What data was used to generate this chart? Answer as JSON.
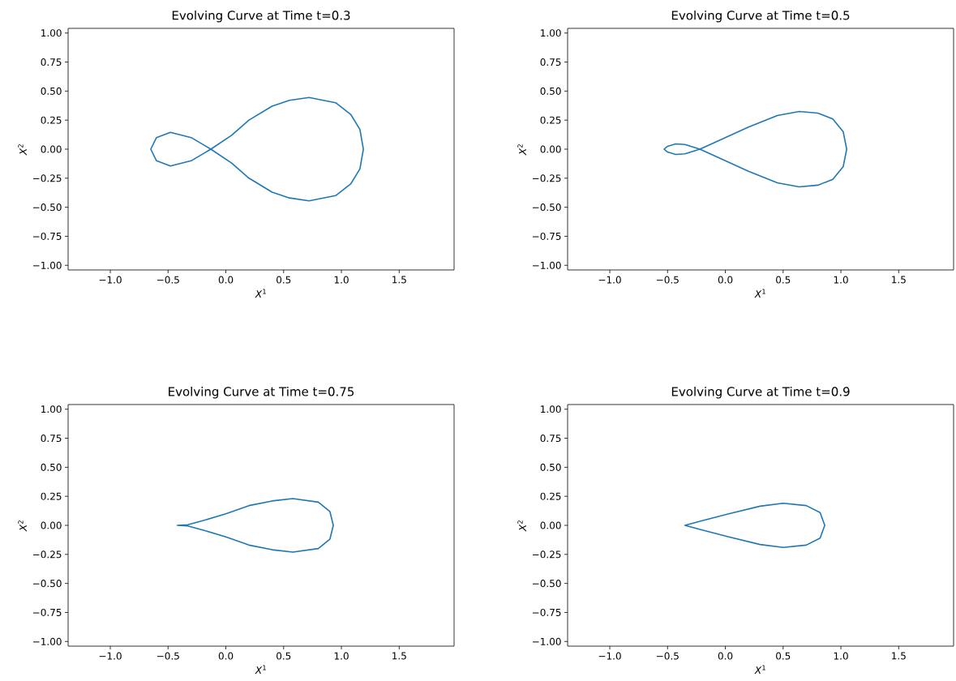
{
  "chart_data": [
    {
      "type": "line",
      "title": "Evolving Curve at Time t=0.3",
      "xlabel": "*X*$^{1}$",
      "ylabel": "*X*$^{2}$",
      "xlim": [
        -1.365,
        1.975
      ],
      "ylim": [
        -1.04,
        1.04
      ],
      "xticks": [
        {
          "value": -1,
          "label": "−1.0"
        },
        {
          "value": -0.5,
          "label": "−0.5"
        },
        {
          "value": 0,
          "label": "0.0"
        },
        {
          "value": 0.5,
          "label": "0.5"
        },
        {
          "value": 1,
          "label": "1.0"
        },
        {
          "value": 1.5,
          "label": "1.5"
        }
      ],
      "yticks": [
        {
          "value": -1,
          "label": "−1.00"
        },
        {
          "value": -0.75,
          "label": "−0.75"
        },
        {
          "value": -0.5,
          "label": "−0.50"
        },
        {
          "value": -0.25,
          "label": "−0.25"
        },
        {
          "value": 0,
          "label": "0.00"
        },
        {
          "value": 0.25,
          "label": "0.25"
        },
        {
          "value": 0.5,
          "label": "0.50"
        },
        {
          "value": 0.75,
          "label": "0.75"
        },
        {
          "value": 1,
          "label": "1.00"
        }
      ],
      "series": [
        {
          "color": "#1f77b4",
          "x": [
            1.19,
            1.16,
            1.08,
            0.95,
            0.72,
            0.55,
            0.4,
            0.2,
            0.05,
            -0.13,
            -0.3,
            -0.48,
            -0.6,
            -0.65,
            -0.6,
            -0.48,
            -0.3,
            -0.13,
            0.05,
            0.2,
            0.4,
            0.55,
            0.72,
            0.95,
            1.08,
            1.16,
            1.19,
            1.16
          ],
          "values": [
            0,
            0.17,
            0.3,
            0.4,
            0.445,
            0.42,
            0.37,
            0.25,
            0.12,
            0,
            -0.1,
            -0.145,
            -0.1,
            0,
            0.1,
            0.145,
            0.1,
            0,
            -0.12,
            -0.25,
            -0.37,
            -0.42,
            -0.445,
            -0.4,
            -0.3,
            -0.17,
            0,
            0.17
          ]
        }
      ]
    },
    {
      "type": "line",
      "title": "Evolving Curve at Time t=0.5",
      "xlabel": "*X*$^{1}$",
      "ylabel": "*X*$^{2}$",
      "xlim": [
        -1.365,
        1.975
      ],
      "ylim": [
        -1.04,
        1.04
      ],
      "xticks": [
        {
          "value": -1,
          "label": "−1.0"
        },
        {
          "value": -0.5,
          "label": "−0.5"
        },
        {
          "value": 0,
          "label": "0.0"
        },
        {
          "value": 0.5,
          "label": "0.5"
        },
        {
          "value": 1,
          "label": "1.0"
        },
        {
          "value": 1.5,
          "label": "1.5"
        }
      ],
      "yticks": [
        {
          "value": -1,
          "label": "−1.00"
        },
        {
          "value": -0.75,
          "label": "−0.75"
        },
        {
          "value": -0.5,
          "label": "−0.50"
        },
        {
          "value": -0.25,
          "label": "−0.25"
        },
        {
          "value": 0,
          "label": "0.00"
        },
        {
          "value": 0.25,
          "label": "0.25"
        },
        {
          "value": 0.5,
          "label": "0.50"
        },
        {
          "value": 0.75,
          "label": "0.75"
        },
        {
          "value": 1,
          "label": "1.00"
        }
      ],
      "series": [
        {
          "color": "#1f77b4",
          "x": [
            1.05,
            1.02,
            0.93,
            0.8,
            0.64,
            0.45,
            0.2,
            0,
            -0.22,
            -0.35,
            -0.43,
            -0.5,
            -0.53,
            -0.5,
            -0.43,
            -0.35,
            -0.22,
            0,
            0.2,
            0.45,
            0.64,
            0.8,
            0.93,
            1.02,
            1.05,
            1.02
          ],
          "values": [
            0,
            0.15,
            0.26,
            0.31,
            0.325,
            0.29,
            0.19,
            0.1,
            0,
            -0.04,
            -0.045,
            -0.025,
            0,
            0.025,
            0.045,
            0.04,
            0,
            -0.1,
            -0.19,
            -0.29,
            -0.325,
            -0.31,
            -0.26,
            -0.15,
            0,
            0.15
          ]
        }
      ]
    },
    {
      "type": "line",
      "title": "Evolving Curve at Time t=0.75",
      "xlabel": "*X*$^{1}$",
      "ylabel": "*X*$^{2}$",
      "xlim": [
        -1.365,
        1.975
      ],
      "ylim": [
        -1.04,
        1.04
      ],
      "xticks": [
        {
          "value": -1,
          "label": "−1.0"
        },
        {
          "value": -0.5,
          "label": "−0.5"
        },
        {
          "value": 0,
          "label": "0.0"
        },
        {
          "value": 0.5,
          "label": "0.5"
        },
        {
          "value": 1,
          "label": "1.0"
        },
        {
          "value": 1.5,
          "label": "1.5"
        }
      ],
      "yticks": [
        {
          "value": -1,
          "label": "−1.00"
        },
        {
          "value": -0.75,
          "label": "−0.75"
        },
        {
          "value": -0.5,
          "label": "−0.50"
        },
        {
          "value": -0.25,
          "label": "−0.25"
        },
        {
          "value": 0,
          "label": "0.00"
        },
        {
          "value": 0.25,
          "label": "0.25"
        },
        {
          "value": 0.5,
          "label": "0.50"
        },
        {
          "value": 0.75,
          "label": "0.75"
        },
        {
          "value": 1,
          "label": "1.00"
        }
      ],
      "series": [
        {
          "color": "#1f77b4",
          "x": [
            0.93,
            0.9,
            0.8,
            0.58,
            0.4,
            0.2,
            0,
            -0.2,
            -0.33,
            -0.42,
            -0.33,
            -0.2,
            0,
            0.2,
            0.4,
            0.58,
            0.8,
            0.9,
            0.93,
            0.9
          ],
          "values": [
            0,
            0.12,
            0.2,
            0.23,
            0.21,
            0.17,
            0.1,
            0.04,
            0.005,
            0,
            -0.005,
            -0.04,
            -0.1,
            -0.17,
            -0.21,
            -0.23,
            -0.2,
            -0.12,
            0,
            0.12
          ]
        }
      ]
    },
    {
      "type": "line",
      "title": "Evolving Curve at Time t=0.9",
      "xlabel": "*X*$^{1}$",
      "ylabel": "*X*$^{2}$",
      "xlim": [
        -1.365,
        1.975
      ],
      "ylim": [
        -1.04,
        1.04
      ],
      "xticks": [
        {
          "value": -1,
          "label": "−1.0"
        },
        {
          "value": -0.5,
          "label": "−0.5"
        },
        {
          "value": 0,
          "label": "0.0"
        },
        {
          "value": 0.5,
          "label": "0.5"
        },
        {
          "value": 1,
          "label": "1.0"
        },
        {
          "value": 1.5,
          "label": "1.5"
        }
      ],
      "yticks": [
        {
          "value": -1,
          "label": "−1.00"
        },
        {
          "value": -0.75,
          "label": "−0.75"
        },
        {
          "value": -0.5,
          "label": "−0.50"
        },
        {
          "value": -0.25,
          "label": "−0.25"
        },
        {
          "value": 0,
          "label": "0.00"
        },
        {
          "value": 0.25,
          "label": "0.25"
        },
        {
          "value": 0.5,
          "label": "0.50"
        },
        {
          "value": 0.75,
          "label": "0.75"
        },
        {
          "value": 1,
          "label": "1.00"
        }
      ],
      "series": [
        {
          "color": "#1f77b4",
          "x": [
            0.86,
            0.82,
            0.7,
            0.5,
            0.3,
            0.03,
            -0.2,
            -0.35,
            -0.2,
            0.03,
            0.3,
            0.5,
            0.7,
            0.82,
            0.86,
            0.82
          ],
          "values": [
            0,
            0.11,
            0.17,
            0.19,
            0.165,
            0.1,
            0.04,
            0,
            -0.04,
            -0.1,
            -0.165,
            -0.19,
            -0.17,
            -0.11,
            0,
            0.11
          ]
        }
      ]
    }
  ]
}
